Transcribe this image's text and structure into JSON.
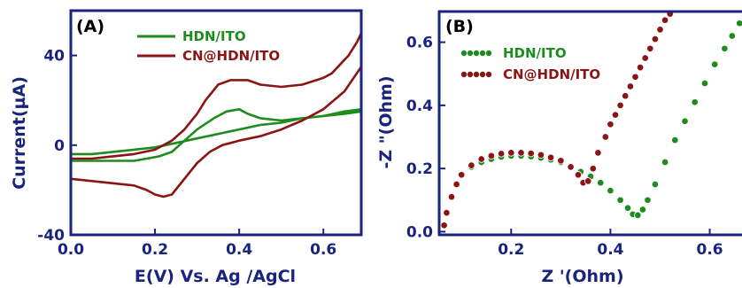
{
  "colors": {
    "axis": "#1a237e",
    "green": "#1e8b1e",
    "red": "#8b1414"
  },
  "chart_data": [
    {
      "type": "line",
      "panel_label": "(A)",
      "xlabel": "E(V) Vs. Ag /AgCl",
      "ylabel": "Current(µA)",
      "xlim": [
        0.0,
        0.69
      ],
      "ylim": [
        -40,
        60
      ],
      "xticks": [
        "0.0",
        "0.2",
        "0.4",
        "0.6"
      ],
      "xtick_values": [
        0.0,
        0.2,
        0.4,
        0.6
      ],
      "yticks": [
        "40",
        "0",
        "-40"
      ],
      "ytick_values": [
        40,
        0,
        -40
      ],
      "legend_position": "top-right",
      "series": [
        {
          "name": "HDN/ITO",
          "color": "#1e8b1e",
          "points": [
            [
              0.0,
              -4
            ],
            [
              0.05,
              -4
            ],
            [
              0.1,
              -3
            ],
            [
              0.15,
              -2
            ],
            [
              0.2,
              -1
            ],
            [
              0.25,
              1
            ],
            [
              0.3,
              3
            ],
            [
              0.35,
              5
            ],
            [
              0.4,
              7
            ],
            [
              0.45,
              9
            ],
            [
              0.5,
              10
            ],
            [
              0.55,
              12
            ],
            [
              0.6,
              13
            ],
            [
              0.65,
              15
            ],
            [
              0.69,
              16
            ],
            [
              0.69,
              15
            ],
            [
              0.65,
              14
            ],
            [
              0.6,
              13
            ],
            [
              0.55,
              12
            ],
            [
              0.5,
              11
            ],
            [
              0.45,
              12
            ],
            [
              0.42,
              14
            ],
            [
              0.4,
              16
            ],
            [
              0.37,
              15
            ],
            [
              0.34,
              12
            ],
            [
              0.3,
              7
            ],
            [
              0.27,
              2
            ],
            [
              0.24,
              -3
            ],
            [
              0.21,
              -5
            ],
            [
              0.18,
              -6
            ],
            [
              0.15,
              -7
            ],
            [
              0.1,
              -7
            ],
            [
              0.05,
              -7
            ],
            [
              0.0,
              -7
            ]
          ]
        },
        {
          "name": "CN@HDN/ITO",
          "color": "#8b1414",
          "points": [
            [
              0.0,
              -15
            ],
            [
              0.05,
              -16
            ],
            [
              0.1,
              -17
            ],
            [
              0.15,
              -18
            ],
            [
              0.18,
              -20
            ],
            [
              0.2,
              -22
            ],
            [
              0.22,
              -23
            ],
            [
              0.24,
              -22
            ],
            [
              0.27,
              -15
            ],
            [
              0.3,
              -8
            ],
            [
              0.33,
              -3
            ],
            [
              0.36,
              0
            ],
            [
              0.4,
              2
            ],
            [
              0.45,
              4
            ],
            [
              0.5,
              7
            ],
            [
              0.55,
              11
            ],
            [
              0.6,
              16
            ],
            [
              0.65,
              24
            ],
            [
              0.69,
              35
            ],
            [
              0.69,
              50
            ],
            [
              0.68,
              46
            ],
            [
              0.66,
              40
            ],
            [
              0.64,
              36
            ],
            [
              0.62,
              32
            ],
            [
              0.6,
              30
            ],
            [
              0.55,
              27
            ],
            [
              0.5,
              26
            ],
            [
              0.45,
              27
            ],
            [
              0.42,
              29
            ],
            [
              0.38,
              29
            ],
            [
              0.35,
              27
            ],
            [
              0.32,
              20
            ],
            [
              0.3,
              14
            ],
            [
              0.27,
              7
            ],
            [
              0.24,
              2
            ],
            [
              0.2,
              -2
            ],
            [
              0.15,
              -4
            ],
            [
              0.1,
              -5
            ],
            [
              0.05,
              -6
            ],
            [
              0.0,
              -6
            ]
          ]
        }
      ]
    },
    {
      "type": "scatter",
      "panel_label": "(B)",
      "xlabel": "Z '(Ohm)",
      "ylabel": "-Z \"(Ohm)",
      "xlim": [
        0.055,
        0.665
      ],
      "ylim": [
        -0.01,
        0.7
      ],
      "xticks": [
        "0.2",
        "0.4",
        "0.6"
      ],
      "xtick_values": [
        0.2,
        0.4,
        0.6
      ],
      "yticks": [
        "0.6",
        "0.4",
        "0.2",
        "0.0"
      ],
      "ytick_values": [
        0.6,
        0.4,
        0.2,
        0.0
      ],
      "legend_position": "top-left",
      "series": [
        {
          "name": "HDN/ITO",
          "color": "#1e8b1e",
          "points": [
            [
              0.065,
              0.02
            ],
            [
              0.07,
              0.06
            ],
            [
              0.08,
              0.11
            ],
            [
              0.09,
              0.15
            ],
            [
              0.1,
              0.18
            ],
            [
              0.12,
              0.205
            ],
            [
              0.14,
              0.22
            ],
            [
              0.16,
              0.23
            ],
            [
              0.18,
              0.237
            ],
            [
              0.2,
              0.24
            ],
            [
              0.22,
              0.24
            ],
            [
              0.24,
              0.238
            ],
            [
              0.26,
              0.234
            ],
            [
              0.28,
              0.228
            ],
            [
              0.3,
              0.22
            ],
            [
              0.32,
              0.205
            ],
            [
              0.34,
              0.19
            ],
            [
              0.36,
              0.175
            ],
            [
              0.38,
              0.155
            ],
            [
              0.4,
              0.13
            ],
            [
              0.42,
              0.1
            ],
            [
              0.435,
              0.075
            ],
            [
              0.445,
              0.055
            ],
            [
              0.455,
              0.052
            ],
            [
              0.465,
              0.07
            ],
            [
              0.475,
              0.1
            ],
            [
              0.49,
              0.15
            ],
            [
              0.51,
              0.22
            ],
            [
              0.53,
              0.29
            ],
            [
              0.55,
              0.35
            ],
            [
              0.57,
              0.41
            ],
            [
              0.59,
              0.47
            ],
            [
              0.61,
              0.53
            ],
            [
              0.63,
              0.58
            ],
            [
              0.645,
              0.62
            ],
            [
              0.66,
              0.66
            ]
          ]
        },
        {
          "name": "CN@HDN/ITO",
          "color": "#8b1414",
          "points": [
            [
              0.065,
              0.02
            ],
            [
              0.07,
              0.06
            ],
            [
              0.08,
              0.11
            ],
            [
              0.09,
              0.15
            ],
            [
              0.1,
              0.18
            ],
            [
              0.12,
              0.21
            ],
            [
              0.14,
              0.23
            ],
            [
              0.16,
              0.24
            ],
            [
              0.18,
              0.247
            ],
            [
              0.2,
              0.25
            ],
            [
              0.22,
              0.25
            ],
            [
              0.24,
              0.248
            ],
            [
              0.26,
              0.243
            ],
            [
              0.28,
              0.235
            ],
            [
              0.3,
              0.225
            ],
            [
              0.32,
              0.205
            ],
            [
              0.335,
              0.18
            ],
            [
              0.345,
              0.155
            ],
            [
              0.355,
              0.16
            ],
            [
              0.365,
              0.2
            ],
            [
              0.375,
              0.25
            ],
            [
              0.39,
              0.3
            ],
            [
              0.4,
              0.34
            ],
            [
              0.41,
              0.37
            ],
            [
              0.42,
              0.4
            ],
            [
              0.43,
              0.43
            ],
            [
              0.44,
              0.46
            ],
            [
              0.45,
              0.49
            ],
            [
              0.46,
              0.52
            ],
            [
              0.47,
              0.55
            ],
            [
              0.48,
              0.58
            ],
            [
              0.49,
              0.61
            ],
            [
              0.5,
              0.64
            ],
            [
              0.51,
              0.67
            ],
            [
              0.52,
              0.69
            ]
          ]
        }
      ]
    }
  ]
}
